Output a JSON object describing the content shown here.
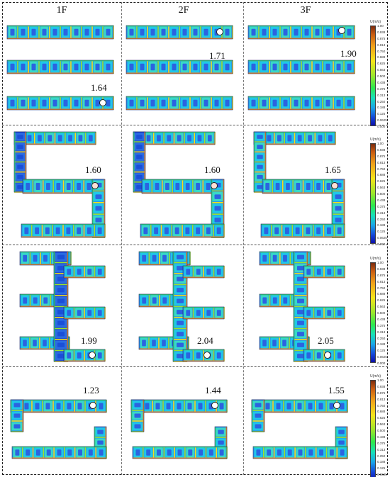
{
  "column_headers": [
    "1F",
    "2F",
    "3F"
  ],
  "colorbar": {
    "title": "U(m/s)",
    "ticks": [
      "1.00",
      "0.938",
      "0.875",
      "0.813",
      "0.750",
      "0.688",
      "0.625",
      "0.563",
      "0.500",
      "0.438",
      "0.375",
      "0.313",
      "0.250",
      "0.188",
      "0.125",
      "0.0625",
      "0.000"
    ]
  },
  "rows": [
    {
      "layout": "three-parallel-corridors",
      "panels": [
        {
          "floor": "1F",
          "value": "1.64"
        },
        {
          "floor": "2F",
          "value": "1.71"
        },
        {
          "floor": "3F",
          "value": "1.90"
        }
      ]
    },
    {
      "layout": "s-shaped-corridor",
      "panels": [
        {
          "floor": "1F",
          "value": "1.60"
        },
        {
          "floor": "2F",
          "value": "1.60"
        },
        {
          "floor": "3F",
          "value": "1.65"
        }
      ]
    },
    {
      "layout": "comb-shaped-corridor",
      "panels": [
        {
          "floor": "1F",
          "value": "1.99"
        },
        {
          "floor": "2F",
          "value": "2.04"
        },
        {
          "floor": "3F",
          "value": "2.05"
        }
      ]
    },
    {
      "layout": "u-shaped-corridor",
      "panels": [
        {
          "floor": "1F",
          "value": "1.23"
        },
        {
          "floor": "2F",
          "value": "1.44"
        },
        {
          "floor": "3F",
          "value": "1.55"
        }
      ]
    }
  ]
}
